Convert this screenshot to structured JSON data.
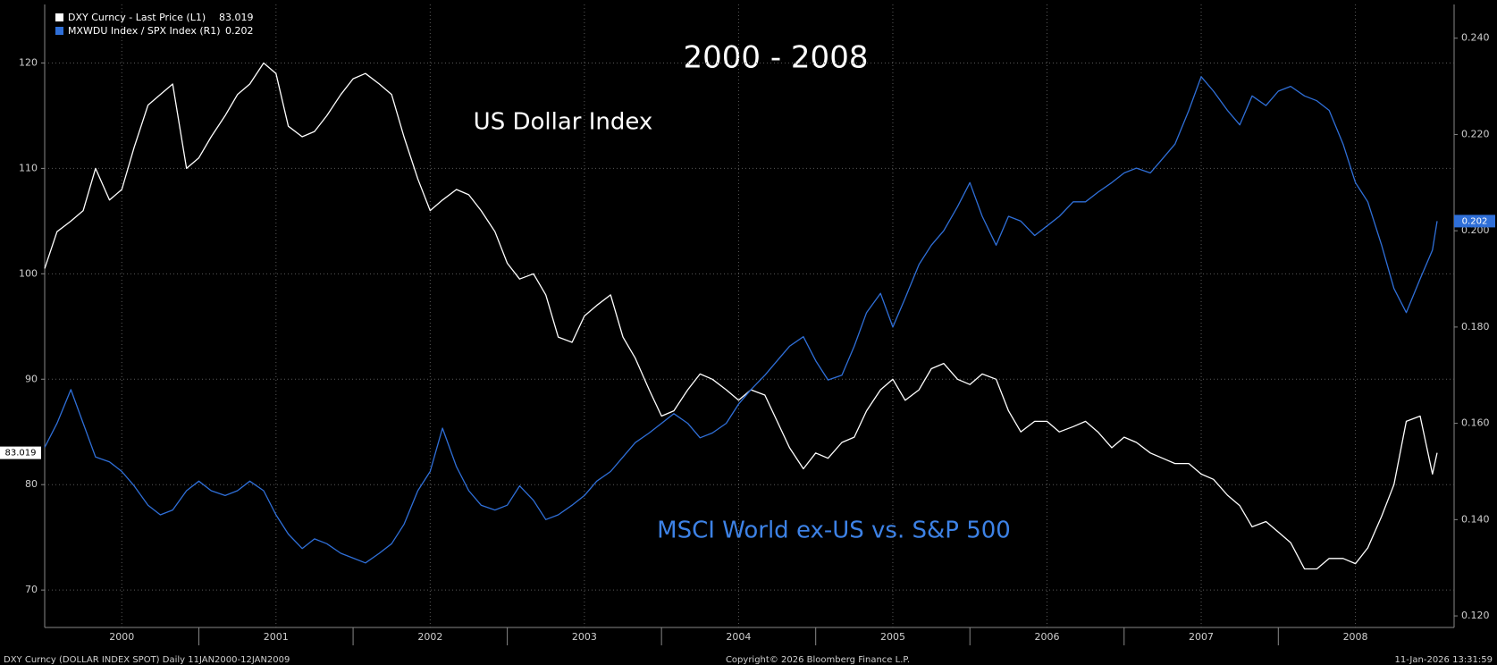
{
  "chart_data": {
    "type": "line",
    "title": "2000 - 2008",
    "annotations": [
      "US Dollar Index",
      "MSCI World ex-US vs. S&P 500"
    ],
    "footer": [
      "DXY Curncy (DOLLAR INDEX SPOT) Daily 11JAN2000-12JAN2009",
      "Copyright© 2026 Bloomberg Finance L.P.",
      "11-Jan-2026 13:31:59"
    ],
    "x": [
      2000.0,
      2000.08,
      2000.17,
      2000.25,
      2000.33,
      2000.42,
      2000.5,
      2000.58,
      2000.67,
      2000.75,
      2000.83,
      2000.92,
      2001.0,
      2001.08,
      2001.17,
      2001.25,
      2001.33,
      2001.42,
      2001.5,
      2001.58,
      2001.67,
      2001.75,
      2001.83,
      2001.92,
      2002.0,
      2002.08,
      2002.17,
      2002.25,
      2002.33,
      2002.42,
      2002.5,
      2002.58,
      2002.67,
      2002.75,
      2002.83,
      2002.92,
      2003.0,
      2003.08,
      2003.17,
      2003.25,
      2003.33,
      2003.42,
      2003.5,
      2003.58,
      2003.67,
      2003.75,
      2003.83,
      2003.92,
      2004.0,
      2004.08,
      2004.17,
      2004.25,
      2004.33,
      2004.42,
      2004.5,
      2004.58,
      2004.67,
      2004.75,
      2004.83,
      2004.92,
      2005.0,
      2005.08,
      2005.17,
      2005.25,
      2005.33,
      2005.42,
      2005.5,
      2005.58,
      2005.67,
      2005.75,
      2005.83,
      2005.92,
      2006.0,
      2006.08,
      2006.17,
      2006.25,
      2006.33,
      2006.42,
      2006.5,
      2006.58,
      2006.67,
      2006.75,
      2006.83,
      2006.92,
      2007.0,
      2007.08,
      2007.17,
      2007.25,
      2007.33,
      2007.42,
      2007.5,
      2007.58,
      2007.67,
      2007.75,
      2007.83,
      2007.92,
      2008.0,
      2008.08,
      2008.17,
      2008.25,
      2008.33,
      2008.42,
      2008.5,
      2008.58,
      2008.67,
      2008.75,
      2008.83,
      2008.92,
      2009.0,
      2009.03
    ],
    "series": [
      {
        "name": "DXY Curncy - Last Price (L1)",
        "color": "#ffffff",
        "axis": "y",
        "values": [
          100.5,
          104,
          105,
          106,
          110,
          107,
          108,
          112,
          116,
          117,
          118,
          110,
          111,
          113,
          115,
          117,
          118,
          120,
          119,
          114,
          113,
          113.5,
          115,
          117,
          118.5,
          119,
          118,
          117,
          113,
          109,
          106,
          107,
          108,
          107.5,
          106,
          104,
          101,
          99.5,
          100,
          98,
          94,
          93.5,
          96,
          97,
          98,
          94,
          92,
          89,
          86.5,
          87,
          89,
          90.5,
          90,
          89,
          88,
          89,
          88.5,
          86,
          83.5,
          81.5,
          83,
          82.5,
          84,
          84.5,
          87,
          89,
          90,
          88,
          89,
          91,
          91.5,
          90,
          89.5,
          90.5,
          90,
          87,
          85,
          86,
          86,
          85,
          85.5,
          86,
          85,
          83.5,
          84.5,
          84,
          83,
          82.5,
          82,
          82,
          81,
          80.5,
          79,
          78,
          76,
          76.5,
          75.5,
          74.5,
          72,
          72,
          73,
          73,
          72.5,
          74,
          77,
          80,
          86,
          86.5,
          81,
          83.019
        ]
      },
      {
        "name": "MXWDU Index / SPX Index (R1)",
        "color": "#2f6fd8",
        "axis": "y2",
        "values": [
          0.155,
          0.16,
          0.167,
          0.16,
          0.153,
          0.152,
          0.15,
          0.147,
          0.143,
          0.141,
          0.142,
          0.146,
          0.148,
          0.146,
          0.145,
          0.146,
          0.148,
          0.146,
          0.141,
          0.137,
          0.134,
          0.136,
          0.135,
          0.133,
          0.132,
          0.131,
          0.133,
          0.135,
          0.139,
          0.146,
          0.15,
          0.159,
          0.151,
          0.146,
          0.143,
          0.142,
          0.143,
          0.147,
          0.144,
          0.14,
          0.141,
          0.143,
          0.145,
          0.148,
          0.15,
          0.153,
          0.156,
          0.158,
          0.16,
          0.162,
          0.16,
          0.157,
          0.158,
          0.16,
          0.164,
          0.167,
          0.17,
          0.173,
          0.176,
          0.178,
          0.173,
          0.169,
          0.17,
          0.176,
          0.183,
          0.187,
          0.18,
          0.186,
          0.193,
          0.197,
          0.2,
          0.205,
          0.21,
          0.203,
          0.197,
          0.203,
          0.202,
          0.199,
          0.201,
          0.203,
          0.206,
          0.206,
          0.208,
          0.21,
          0.212,
          0.213,
          0.212,
          0.215,
          0.218,
          0.225,
          0.232,
          0.229,
          0.225,
          0.222,
          0.228,
          0.226,
          0.229,
          0.23,
          0.228,
          0.227,
          0.225,
          0.218,
          0.21,
          0.206,
          0.197,
          0.188,
          0.183,
          0.19,
          0.196,
          0.202
        ]
      }
    ],
    "xlim": [
      2000.0,
      2009.14
    ],
    "xticks": [
      {
        "value": 2000.5,
        "label": "2000"
      },
      {
        "value": 2001.5,
        "label": "2001"
      },
      {
        "value": 2002.5,
        "label": "2002"
      },
      {
        "value": 2003.5,
        "label": "2003"
      },
      {
        "value": 2004.5,
        "label": "2004"
      },
      {
        "value": 2005.5,
        "label": "2005"
      },
      {
        "value": 2006.5,
        "label": "2006"
      },
      {
        "value": 2007.5,
        "label": "2007"
      },
      {
        "value": 2008.5,
        "label": "2008"
      }
    ],
    "ylim": [
      66.45,
      125.55
    ],
    "yticks": [
      70,
      80,
      90,
      100,
      110,
      120
    ],
    "y2lim": [
      0.1176,
      0.247
    ],
    "y2ticks": [
      {
        "value": 0.12,
        "label": "0.120"
      },
      {
        "value": 0.14,
        "label": "0.140"
      },
      {
        "value": 0.16,
        "label": "0.160"
      },
      {
        "value": 0.18,
        "label": "0.180"
      },
      {
        "value": 0.2,
        "label": "0.200"
      },
      {
        "value": 0.22,
        "label": "0.220"
      },
      {
        "value": 0.24,
        "label": "0.240"
      }
    ],
    "grid": true,
    "legend": "top-left"
  }
}
